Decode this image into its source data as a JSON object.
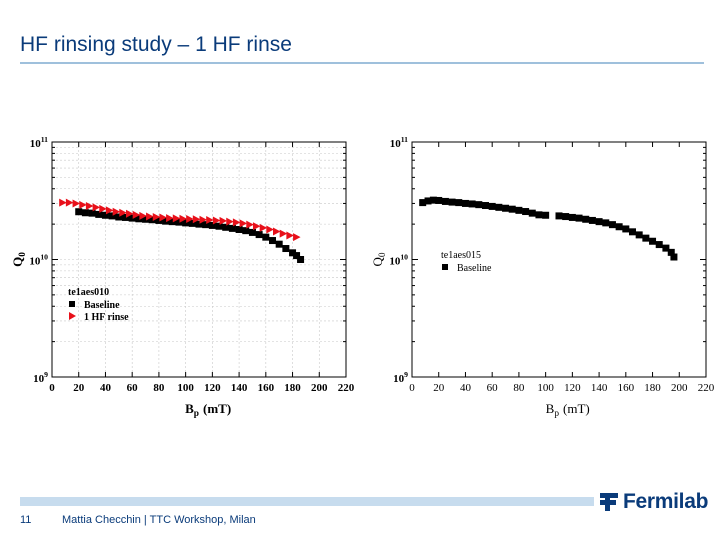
{
  "slide": {
    "title": "HF rinsing study – 1 HF rinse",
    "page_number": "11",
    "footer": "Mattia Checchin | TTC Workshop, Milan",
    "logo_text": "Fermilab",
    "logo_icon": "fermilab-icon",
    "accent_color": "#0a3b7a"
  },
  "chart_data": [
    {
      "type": "scatter",
      "title": "",
      "xlabel": "Bp (mT)",
      "ylabel": "Q0",
      "xlim": [
        0,
        220
      ],
      "x_ticks": [
        "0",
        "20",
        "40",
        "60",
        "80",
        "100",
        "120",
        "140",
        "160",
        "180",
        "200",
        "220"
      ],
      "y_scale": "log",
      "ylim": [
        1000000000.0,
        100000000000.0
      ],
      "y_ticks": [
        {
          "value": 1000000000.0,
          "base": "10",
          "exp": "9"
        },
        {
          "value": 10000000000.0,
          "base": "10",
          "exp": "10"
        },
        {
          "value": 100000000000.0,
          "base": "10",
          "exp": "11"
        }
      ],
      "grid": true,
      "legend_title": "te1aes010",
      "legend_position": "lower-left",
      "series": [
        {
          "name": "Baseline",
          "marker": "square",
          "color": "#000000",
          "points": [
            [
              20,
              25500000000.0
            ],
            [
              25,
              25000000000.0
            ],
            [
              30,
              24800000000.0
            ],
            [
              35,
              24200000000.0
            ],
            [
              40,
              23800000000.0
            ],
            [
              45,
              23500000000.0
            ],
            [
              50,
              23000000000.0
            ],
            [
              55,
              22800000000.0
            ],
            [
              60,
              22500000000.0
            ],
            [
              65,
              22200000000.0
            ],
            [
              70,
              22000000000.0
            ],
            [
              75,
              21800000000.0
            ],
            [
              80,
              21500000000.0
            ],
            [
              85,
              21200000000.0
            ],
            [
              90,
              21000000000.0
            ],
            [
              95,
              20800000000.0
            ],
            [
              100,
              20500000000.0
            ],
            [
              105,
              20300000000.0
            ],
            [
              110,
              20000000000.0
            ],
            [
              115,
              19800000000.0
            ],
            [
              120,
              19500000000.0
            ],
            [
              125,
              19200000000.0
            ],
            [
              130,
              18800000000.0
            ],
            [
              135,
              18400000000.0
            ],
            [
              140,
              18000000000.0
            ],
            [
              145,
              17600000000.0
            ],
            [
              150,
              17000000000.0
            ],
            [
              155,
              16300000000.0
            ],
            [
              160,
              15500000000.0
            ],
            [
              165,
              14500000000.0
            ],
            [
              170,
              13500000000.0
            ],
            [
              175,
              12400000000.0
            ],
            [
              180,
              11400000000.0
            ],
            [
              183,
              10800000000.0
            ],
            [
              186,
              10000000000.0
            ]
          ]
        },
        {
          "name": "1 HF rinse",
          "marker": "triangle-right",
          "color": "#e8101a",
          "points": [
            [
              8,
              30500000000.0
            ],
            [
              13,
              30500000000.0
            ],
            [
              18,
              30000000000.0
            ],
            [
              23,
              29200000000.0
            ],
            [
              28,
              28500000000.0
            ],
            [
              33,
              27800000000.0
            ],
            [
              38,
              27000000000.0
            ],
            [
              43,
              26200000000.0
            ],
            [
              48,
              25500000000.0
            ],
            [
              53,
              25000000000.0
            ],
            [
              58,
              24500000000.0
            ],
            [
              63,
              24000000000.0
            ],
            [
              68,
              23500000000.0
            ],
            [
              73,
              23200000000.0
            ],
            [
              78,
              23000000000.0
            ],
            [
              83,
              22800000000.0
            ],
            [
              88,
              22500000000.0
            ],
            [
              93,
              22400000000.0
            ],
            [
              98,
              22200000000.0
            ],
            [
              103,
              22100000000.0
            ],
            [
              108,
              22000000000.0
            ],
            [
              113,
              21800000000.0
            ],
            [
              118,
              21700000000.0
            ],
            [
              123,
              21500000000.0
            ],
            [
              128,
              21300000000.0
            ],
            [
              133,
              21000000000.0
            ],
            [
              138,
              20700000000.0
            ],
            [
              143,
              20300000000.0
            ],
            [
              148,
              19800000000.0
            ],
            [
              153,
              19200000000.0
            ],
            [
              158,
              18600000000.0
            ],
            [
              163,
              18000000000.0
            ],
            [
              168,
              17300000000.0
            ],
            [
              173,
              16600000000.0
            ],
            [
              178,
              16000000000.0
            ],
            [
              183,
              15500000000.0
            ]
          ]
        }
      ]
    },
    {
      "type": "scatter",
      "title": "",
      "xlabel": "Bp (mT)",
      "ylabel": "Q0",
      "xlim": [
        0,
        220
      ],
      "x_ticks": [
        "0",
        "20",
        "40",
        "60",
        "80",
        "100",
        "120",
        "140",
        "160",
        "180",
        "200",
        "220"
      ],
      "y_scale": "log",
      "ylim": [
        1000000000.0,
        100000000000.0
      ],
      "y_ticks": [
        {
          "value": 1000000000.0,
          "base": "10",
          "exp": "9"
        },
        {
          "value": 10000000000.0,
          "base": "10",
          "exp": "10"
        },
        {
          "value": 100000000000.0,
          "base": "10",
          "exp": "11"
        }
      ],
      "grid": false,
      "legend_title": "te1aes015",
      "legend_position": "center-left",
      "series": [
        {
          "name": "Baseline",
          "marker": "square",
          "color": "#000000",
          "points": [
            [
              8,
              30500000000.0
            ],
            [
              12,
              31500000000.0
            ],
            [
              16,
              32000000000.0
            ],
            [
              20,
              31800000000.0
            ],
            [
              25,
              31200000000.0
            ],
            [
              30,
              30800000000.0
            ],
            [
              35,
              30500000000.0
            ],
            [
              40,
              30000000000.0
            ],
            [
              45,
              29700000000.0
            ],
            [
              50,
              29300000000.0
            ],
            [
              55,
              28800000000.0
            ],
            [
              60,
              28300000000.0
            ],
            [
              65,
              27800000000.0
            ],
            [
              70,
              27300000000.0
            ],
            [
              75,
              26800000000.0
            ],
            [
              80,
              26200000000.0
            ],
            [
              85,
              25600000000.0
            ],
            [
              90,
              24800000000.0
            ],
            [
              95,
              24000000000.0
            ],
            [
              100,
              23800000000.0
            ],
            [
              110,
              23500000000.0
            ],
            [
              115,
              23200000000.0
            ],
            [
              120,
              22800000000.0
            ],
            [
              125,
              22500000000.0
            ],
            [
              130,
              22000000000.0
            ],
            [
              135,
              21500000000.0
            ],
            [
              140,
              21000000000.0
            ],
            [
              145,
              20500000000.0
            ],
            [
              150,
              19800000000.0
            ],
            [
              155,
              19000000000.0
            ],
            [
              160,
              18200000000.0
            ],
            [
              165,
              17200000000.0
            ],
            [
              170,
              16200000000.0
            ],
            [
              175,
              15200000000.0
            ],
            [
              180,
              14300000000.0
            ],
            [
              185,
              13400000000.0
            ],
            [
              190,
              12500000000.0
            ],
            [
              194,
              11500000000.0
            ],
            [
              196,
              10500000000.0
            ]
          ]
        }
      ]
    }
  ]
}
